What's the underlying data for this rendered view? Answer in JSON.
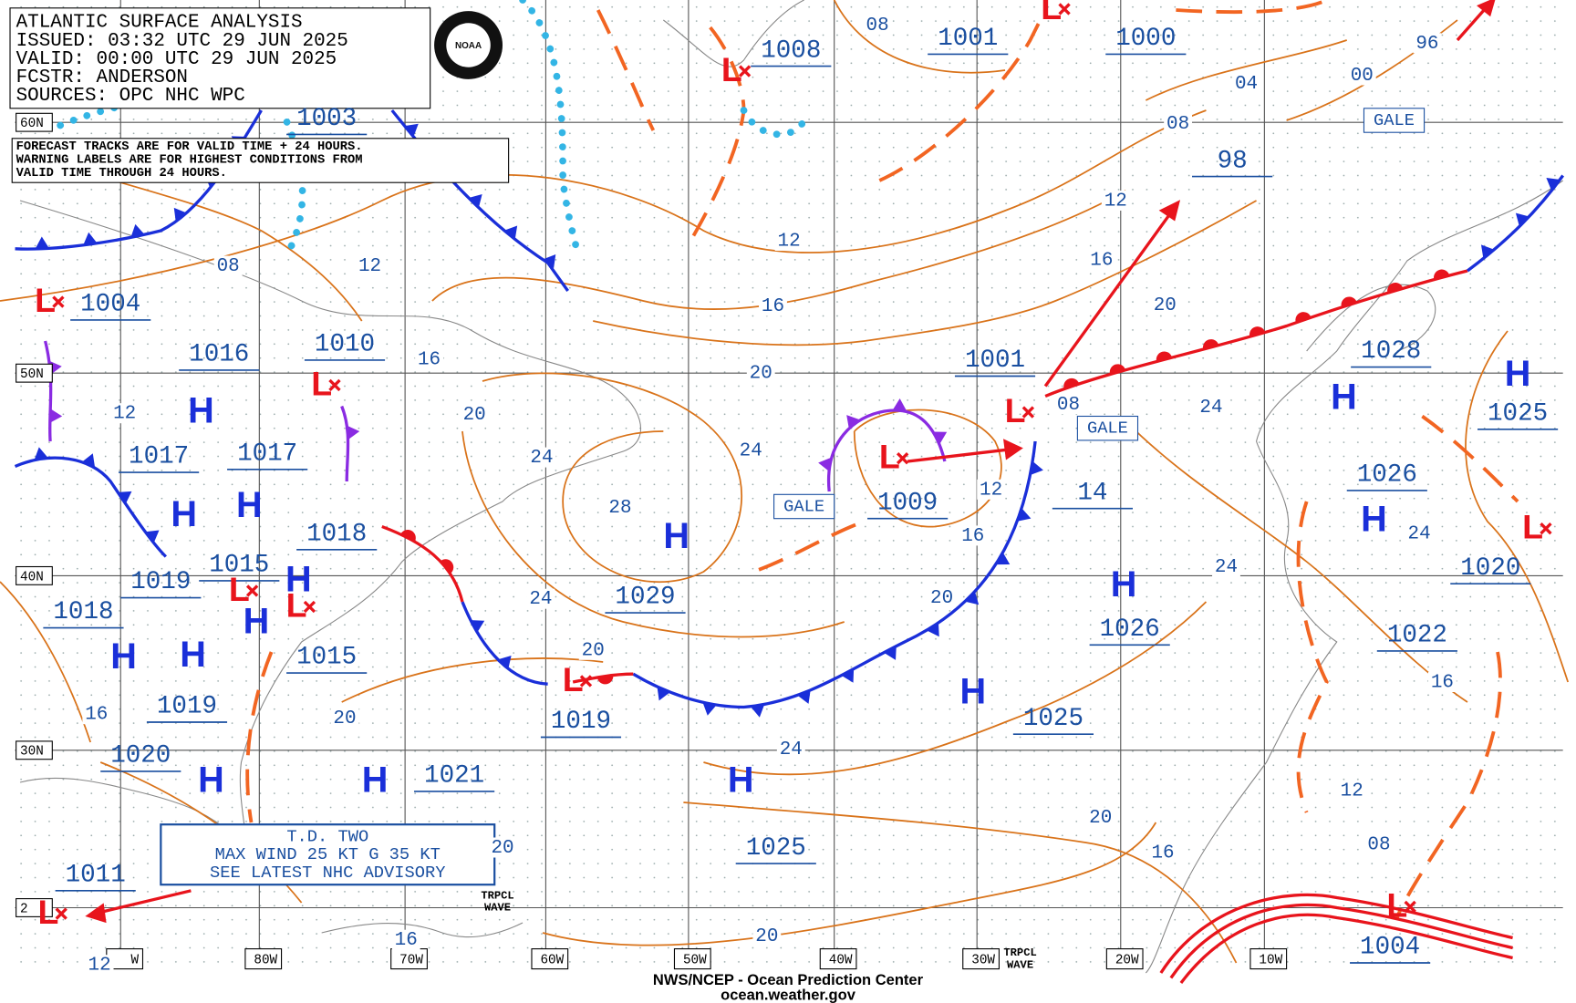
{
  "header": {
    "title": "ATLANTIC SURFACE ANALYSIS",
    "issued": "ISSUED: 03:32 UTC 29 JUN 2025",
    "valid": "VALID:  00:00 UTC 29 JUN 2025",
    "forecaster": "FCSTR:  ANDERSON",
    "sources": "SOURCES: OPC NHC WPC",
    "logo_text": "NOAA"
  },
  "notice": [
    "FORECAST TRACKS ARE FOR VALID TIME + 24 HOURS.",
    "WARNING LABELS ARE FOR HIGHEST CONDITIONS FROM",
    "VALID TIME THROUGH 24 HOURS."
  ],
  "advisory": [
    "T.D. TWO",
    "MAX WIND 25 KT G 35 KT",
    "SEE LATEST NHC ADVISORY"
  ],
  "footer": [
    "NWS/NCEP - Ocean Prediction Center",
    "ocean.weather.gov"
  ],
  "latitude_labels": [
    "60N",
    "50N",
    "40N",
    "30N",
    "2"
  ],
  "longitude_labels": [
    "W",
    "80W",
    "70W",
    "60W",
    "50W",
    "40W",
    "30W",
    "20W",
    "10W"
  ],
  "symbols": {
    "high": "H",
    "low": "L"
  },
  "pressure_labels": [
    "1003",
    "1008",
    "1001",
    "1000",
    "98",
    "1004",
    "1016",
    "1010",
    "1001",
    "1017",
    "1017",
    "1018",
    "1009",
    "14",
    "1028",
    "1025",
    "1026",
    "1015",
    "1019",
    "1029",
    "1026",
    "1020",
    "1022",
    "1018",
    "1015",
    "1025",
    "1019",
    "1019",
    "1021",
    "1020",
    "1025",
    "1011",
    "1004"
  ],
  "isobar_labels": [
    "08",
    "04",
    "00",
    "96",
    "08",
    "12",
    "16",
    "20",
    "12",
    "16",
    "20",
    "24",
    "28",
    "24",
    "20",
    "20",
    "24",
    "20",
    "12",
    "16",
    "20",
    "08",
    "12",
    "16",
    "12",
    "20",
    "24",
    "24",
    "08",
    "24",
    "24",
    "16",
    "12",
    "08",
    "16",
    "16",
    "12",
    "20",
    "16",
    "20"
  ],
  "warnings": [
    "GALE",
    "GALE",
    "GALE"
  ],
  "tropical_waves": [
    [
      "TRPCL",
      "WAVE"
    ],
    [
      "TRPCL",
      "WAVE"
    ]
  ]
}
